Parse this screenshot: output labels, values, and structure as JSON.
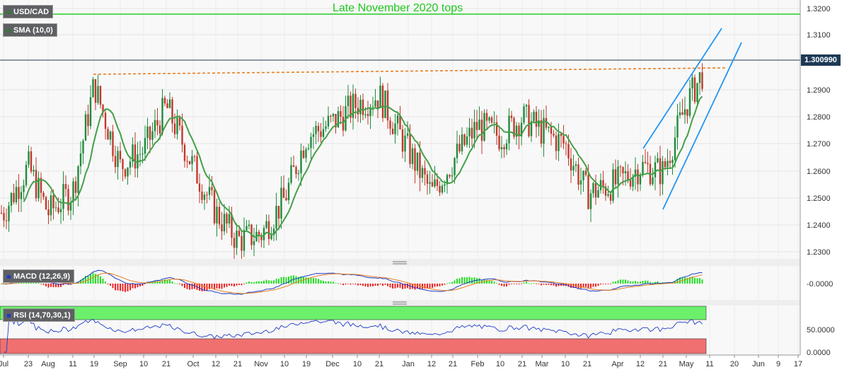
{
  "symbol": "USD/CAD",
  "indicators": {
    "sma": "SMA (10,0)",
    "macd": "MACD (12,26,9)",
    "rsi": "RSI (14,70,30,1)"
  },
  "annotation": "Late November 2020 tops",
  "last_price": "1.300990",
  "colors": {
    "candle_up": "#1f8a3c",
    "candle_down": "#c0392b",
    "sma": "#43a047",
    "resistance": "#22cc22",
    "channel": "#2196f3",
    "dashed": "#e67e22",
    "macd_line": "#1e3cc8",
    "signal_line": "#e67e22",
    "hist_pos": "#22dd22",
    "hist_neg": "#ee2222",
    "rsi_line": "#1e3cc8",
    "rsi_overbought": "#6cf06c",
    "rsi_oversold": "#f07070"
  },
  "chart_data": [
    {
      "type": "candlestick",
      "title": "USD/CAD",
      "y_ticks": [
        "1.3200",
        "1.3100",
        "1.2900",
        "1.2800",
        "1.2700",
        "1.2600",
        "1.2500",
        "1.2400",
        "1.2300"
      ],
      "ylim": [
        1.225,
        1.3225
      ],
      "x_ticks": [
        "Jul",
        "23",
        "Aug",
        "11",
        "19",
        "Sep",
        "10",
        "21",
        "Oct",
        "12",
        "21",
        "Nov",
        "10",
        "19",
        "Dec",
        "10",
        "21",
        "Jan",
        "12",
        "21",
        "Feb",
        "10",
        "21",
        "Mar",
        "10",
        "21",
        "Apr",
        "12",
        "21",
        "May",
        "11",
        "20",
        "Jun",
        "9",
        "17"
      ],
      "levels": [
        {
          "label": "Late November 2020 tops",
          "value": 1.3175
        },
        {
          "label": "1.300990",
          "value": 1.30099
        }
      ],
      "key_closes": [
        {
          "x": "Jul",
          "y": 1.245
        },
        {
          "x": "23",
          "y": 1.262
        },
        {
          "x": "Aug",
          "y": 1.245
        },
        {
          "x": "11",
          "y": 1.253
        },
        {
          "x": "19",
          "y": 1.292
        },
        {
          "x": "Sep",
          "y": 1.262
        },
        {
          "x": "10",
          "y": 1.268
        },
        {
          "x": "21",
          "y": 1.284
        },
        {
          "x": "Oct",
          "y": 1.262
        },
        {
          "x": "12",
          "y": 1.245
        },
        {
          "x": "21",
          "y": 1.235
        },
        {
          "x": "Nov",
          "y": 1.237
        },
        {
          "x": "10",
          "y": 1.25
        },
        {
          "x": "19",
          "y": 1.273
        },
        {
          "x": "Dec",
          "y": 1.278
        },
        {
          "x": "10",
          "y": 1.285
        },
        {
          "x": "21",
          "y": 1.288
        },
        {
          "x": "Jan",
          "y": 1.268
        },
        {
          "x": "12",
          "y": 1.252
        },
        {
          "x": "21",
          "y": 1.264
        },
        {
          "x": "Feb",
          "y": 1.277
        },
        {
          "x": "10",
          "y": 1.273
        },
        {
          "x": "21",
          "y": 1.28
        },
        {
          "x": "Mar",
          "y": 1.275
        },
        {
          "x": "10",
          "y": 1.27
        },
        {
          "x": "21",
          "y": 1.252
        },
        {
          "x": "Apr",
          "y": 1.256
        },
        {
          "x": "12",
          "y": 1.262
        },
        {
          "x": "21",
          "y": 1.26
        },
        {
          "x": "May",
          "y": 1.285
        },
        {
          "x": "11",
          "y": 1.301
        }
      ]
    },
    {
      "type": "line",
      "title": "MACD (12,26,9)",
      "y_ticks": [
        "-0.0000"
      ],
      "note": "MACD line, signal line and histogram; rises to new highs into May"
    },
    {
      "type": "line",
      "title": "RSI (14,70,30,1)",
      "y_ticks": [
        "50.0000",
        "0.0000"
      ],
      "note": "RSI near 70 at the right edge"
    }
  ]
}
